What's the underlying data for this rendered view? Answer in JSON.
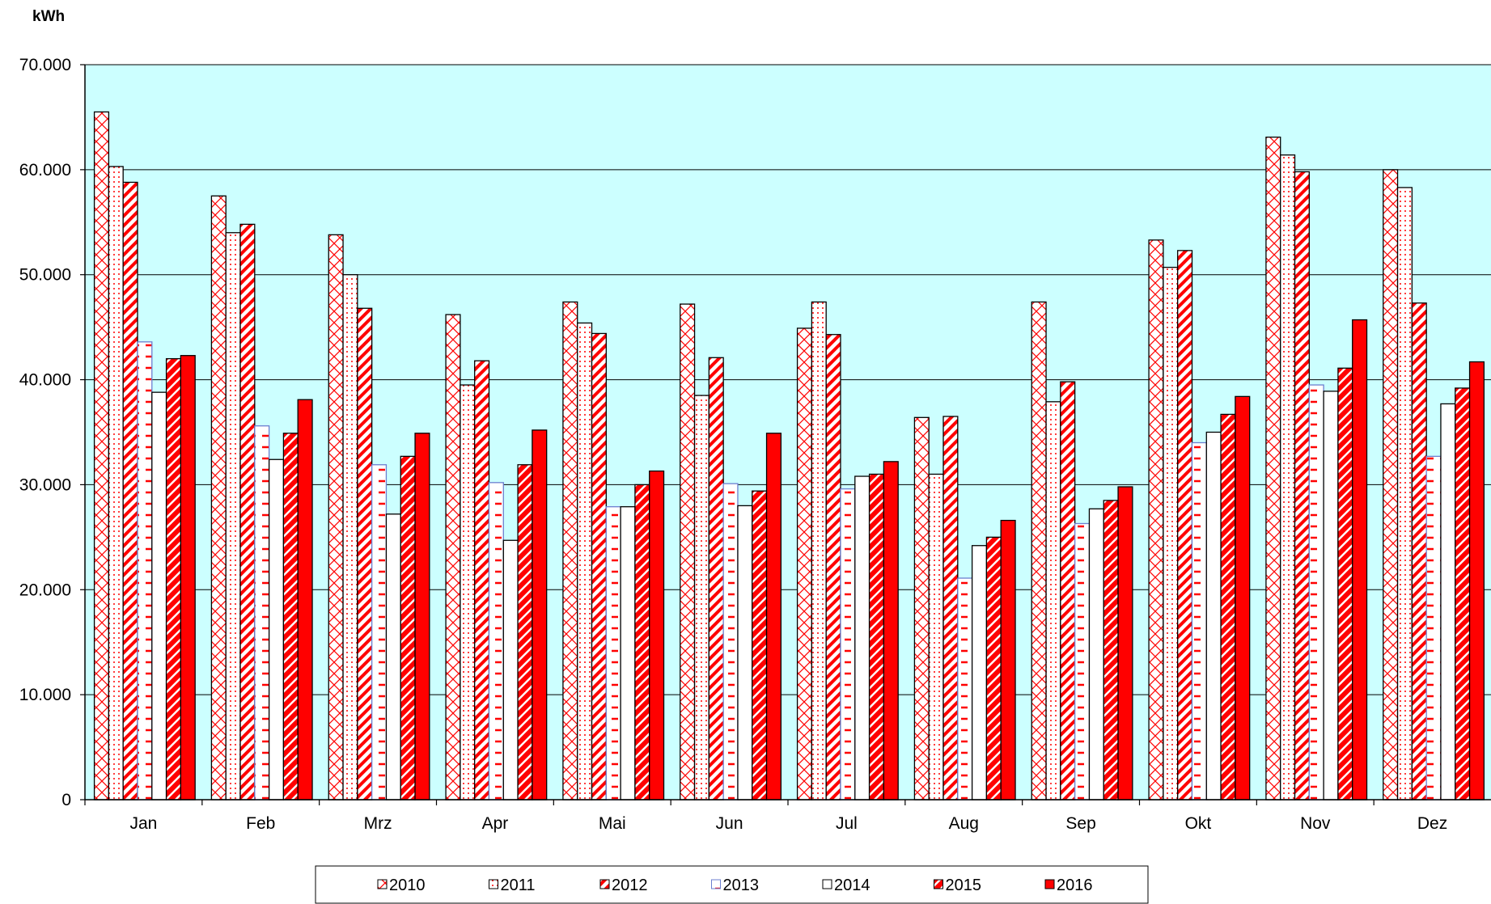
{
  "chart_data": {
    "type": "bar",
    "unit_label": "kWh",
    "categories": [
      "Jan",
      "Feb",
      "Mrz",
      "Apr",
      "Mai",
      "Jun",
      "Jul",
      "Aug",
      "Sep",
      "Okt",
      "Nov",
      "Dez"
    ],
    "ylim": [
      0,
      70000
    ],
    "y_ticks": [
      {
        "value": 0,
        "label": "0"
      },
      {
        "value": 10000,
        "label": "10.000"
      },
      {
        "value": 20000,
        "label": "20.000"
      },
      {
        "value": 30000,
        "label": "30.000"
      },
      {
        "value": 40000,
        "label": "40.000"
      },
      {
        "value": 50000,
        "label": "50.000"
      },
      {
        "value": 60000,
        "label": "60.000"
      },
      {
        "value": 70000,
        "label": "70.000"
      }
    ],
    "grid": true,
    "plot_background": "#ccffff",
    "legend_position": "bottom",
    "series": [
      {
        "name": "2010",
        "pattern": "crosshatch",
        "color": "#ff0000",
        "values": [
          65500,
          57500,
          53800,
          46200,
          47400,
          47200,
          44900,
          36400,
          47400,
          53300,
          63100,
          60000
        ]
      },
      {
        "name": "2011",
        "pattern": "dots",
        "color": "#ff0000",
        "values": [
          60300,
          54000,
          50000,
          39500,
          45400,
          38500,
          47400,
          31000,
          37900,
          50700,
          61400,
          58300
        ]
      },
      {
        "name": "2012",
        "pattern": "diagonal-stripes",
        "color": "#ff0000",
        "values": [
          58800,
          54800,
          46800,
          41800,
          44400,
          42100,
          44300,
          36500,
          39800,
          52300,
          59800,
          47300
        ]
      },
      {
        "name": "2013",
        "pattern": "dashes",
        "color": "#ff0000",
        "border": "#6b7fcf",
        "values": [
          43600,
          35600,
          31900,
          30200,
          27900,
          30100,
          29600,
          21100,
          26300,
          34000,
          39500,
          32700
        ]
      },
      {
        "name": "2014",
        "pattern": "plain",
        "color": "#ffffff",
        "values": [
          38800,
          32400,
          27200,
          24700,
          27900,
          28000,
          30800,
          24200,
          27700,
          35000,
          38900,
          37700
        ]
      },
      {
        "name": "2015",
        "pattern": "bold-diagonal-stripes",
        "color": "#ff0000",
        "values": [
          42000,
          34900,
          32700,
          31900,
          30000,
          29400,
          31000,
          25000,
          28500,
          36700,
          41100,
          39200
        ]
      },
      {
        "name": "2016",
        "pattern": "solid",
        "color": "#ff0000",
        "values": [
          42300,
          38100,
          34900,
          35200,
          31300,
          34900,
          32200,
          26600,
          29800,
          38400,
          45700,
          41700
        ]
      }
    ]
  }
}
